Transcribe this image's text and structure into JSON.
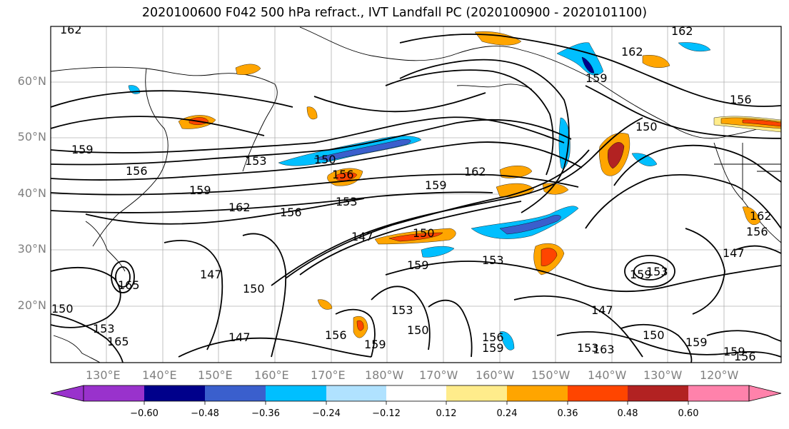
{
  "title": "2020100600 F042 500 hPa refract., IVT Landfall PC (2020100900 - 2020101100)",
  "map": {
    "lat_labels": [
      "60°N",
      "50°N",
      "40°N",
      "30°N",
      "20°N"
    ],
    "lon_labels": [
      "130°E",
      "140°E",
      "150°E",
      "160°E",
      "170°E",
      "180°W",
      "170°W",
      "160°W",
      "150°W",
      "140°W",
      "130°W",
      "120°W"
    ],
    "contour_labels": [
      "162",
      "162",
      "162",
      "156",
      "159",
      "156",
      "153",
      "150",
      "150",
      "159",
      "162",
      "159",
      "162",
      "156",
      "153",
      "147",
      "150",
      "159",
      "153",
      "147",
      "150",
      "153",
      "150",
      "147",
      "147",
      "156",
      "159",
      "156",
      "159",
      "153",
      "150",
      "165",
      "165",
      "153",
      "159",
      "153",
      "163",
      "150",
      "159",
      "156",
      "147",
      "156",
      "162",
      "156",
      "159",
      "159"
    ]
  },
  "colorbar": {
    "tick_labels": [
      "−0.60",
      "−0.48",
      "−0.36",
      "−0.24",
      "−0.12",
      "0.12",
      "0.24",
      "0.36",
      "0.48",
      "0.60"
    ],
    "colors": [
      "#9932cc",
      "#00008b",
      "#3a5fcd",
      "#00bfff",
      "#b0e2ff",
      "#ffffff",
      "#ffec8b",
      "#ffa500",
      "#ff4500",
      "#b22222",
      "#ff82ab"
    ]
  }
}
